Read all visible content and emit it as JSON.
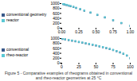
{
  "chart_data": [
    {
      "type": "scatter",
      "legend": "left",
      "series": [
        {
          "name": "conventional geometry",
          "color": "#3a5a8a",
          "marker": "square",
          "x": [
            0.02,
            0.04,
            0.07,
            0.1,
            0.13,
            0.17,
            0.21,
            0.27,
            0.33,
            0.42,
            0.52,
            0.63,
            0.75,
            0.87,
            1.0
          ],
          "values": [
            980,
            960,
            940,
            915,
            890,
            860,
            820,
            770,
            710,
            630,
            535,
            435,
            320,
            205,
            90
          ]
        },
        {
          "name": "reactor",
          "color": "#5bc8d4",
          "marker": "square",
          "x": [
            0.02,
            0.04,
            0.07,
            0.1,
            0.13,
            0.17,
            0.21,
            0.27,
            0.33,
            0.42,
            0.52,
            0.63,
            0.75,
            0.87,
            1.0
          ],
          "values": [
            990,
            970,
            950,
            925,
            900,
            870,
            830,
            780,
            720,
            640,
            545,
            445,
            330,
            215,
            100
          ]
        }
      ],
      "xlim": [
        0,
        1.0
      ],
      "xticks": [
        {
          "value": 0,
          "label": "0.00"
        },
        {
          "value": 0.25,
          "label": "0.25"
        },
        {
          "value": 0.5,
          "label": "0.50"
        },
        {
          "value": 0.75,
          "label": "0.75"
        },
        {
          "value": 1.0,
          "label": "1.00"
        }
      ],
      "ylim": [
        0,
        1000
      ],
      "yticks": [
        0,
        200,
        400,
        600,
        800,
        1000
      ]
    },
    {
      "type": "scatter",
      "legend": "left",
      "series": [
        {
          "name": "conventional",
          "color": "#3a5a8a",
          "marker": "square",
          "x": [
            1,
            5,
            10,
            15,
            20,
            25,
            30,
            35,
            40,
            45,
            50,
            55,
            60,
            65,
            70,
            75,
            80,
            85,
            90,
            95,
            100
          ],
          "values": [
            980,
            960,
            935,
            910,
            885,
            855,
            828,
            800,
            772,
            743,
            714,
            680,
            646,
            610,
            572,
            530,
            484,
            434,
            376,
            305,
            195
          ]
        },
        {
          "name": "rheo-reactor",
          "color": "#5bc8d4",
          "marker": "square",
          "x": [
            1,
            5,
            10,
            15,
            20,
            25,
            30,
            35,
            40,
            45,
            50,
            55,
            60,
            65,
            70,
            75,
            80,
            85,
            90,
            95,
            100
          ],
          "values": [
            990,
            970,
            945,
            920,
            895,
            865,
            838,
            810,
            782,
            753,
            724,
            690,
            656,
            620,
            582,
            540,
            494,
            444,
            386,
            315,
            205
          ]
        }
      ],
      "xlim": [
        0,
        100
      ],
      "xticks": [
        0,
        25,
        50,
        75,
        100
      ],
      "ylim": [
        0,
        1000
      ],
      "yticks": [
        0,
        200,
        400,
        600,
        800,
        1000
      ],
      "caption": "Figure 5 - Comparative examples of rheograms obtained in conventional and rheo-reactor geometries at 25 °C"
    }
  ]
}
